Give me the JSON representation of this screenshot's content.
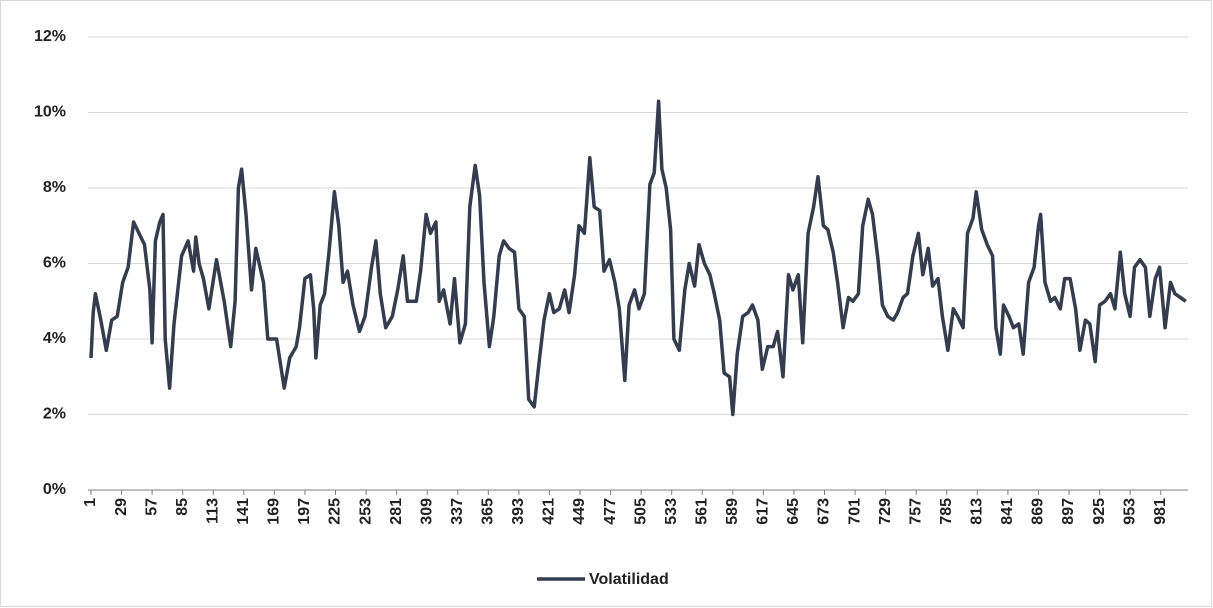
{
  "chart_data": {
    "type": "line",
    "xlim": [
      1,
      1006
    ],
    "xticks": [
      1,
      29,
      57,
      85,
      113,
      141,
      169,
      197,
      225,
      253,
      281,
      309,
      337,
      365,
      393,
      421,
      449,
      477,
      505,
      533,
      561,
      589,
      617,
      645,
      673,
      701,
      729,
      757,
      785,
      813,
      841,
      869,
      897,
      925,
      953,
      981
    ],
    "ylim": [
      0,
      12
    ],
    "yticks": [
      {
        "value": 0,
        "label": "0%"
      },
      {
        "value": 2,
        "label": "2%"
      },
      {
        "value": 4,
        "label": "4%"
      },
      {
        "value": 6,
        "label": "6%"
      },
      {
        "value": 8,
        "label": "8%"
      },
      {
        "value": 10,
        "label": "10%"
      },
      {
        "value": 12,
        "label": "12%"
      }
    ],
    "grid": true,
    "legend": "bottom",
    "series": [
      {
        "name": "Volatilidad",
        "color": "#333d4f",
        "x": [
          1,
          3,
          5,
          10,
          15,
          20,
          25,
          30,
          35,
          40,
          45,
          50,
          55,
          57,
          60,
          64,
          67,
          69,
          73,
          77,
          84,
          90,
          95,
          97,
          100,
          104,
          109,
          116,
          123,
          129,
          133,
          136,
          139,
          143,
          148,
          152,
          159,
          163,
          171,
          178,
          183,
          189,
          192,
          197,
          202,
          205,
          207,
          211,
          215,
          219,
          224,
          228,
          232,
          236,
          241,
          247,
          252,
          258,
          262,
          266,
          271,
          277,
          282,
          287,
          291,
          299,
          303,
          308,
          312,
          317,
          320,
          324,
          330,
          334,
          339,
          344,
          348,
          353,
          357,
          361,
          366,
          370,
          375,
          379,
          384,
          389,
          393,
          398,
          402,
          407,
          412,
          416,
          421,
          425,
          430,
          435,
          439,
          444,
          448,
          453,
          458,
          462,
          467,
          471,
          476,
          481,
          485,
          490,
          494,
          499,
          503,
          508,
          513,
          517,
          521,
          524,
          528,
          532,
          535,
          540,
          545,
          549,
          554,
          558,
          563,
          568,
          572,
          577,
          581,
          586,
          589,
          593,
          598,
          603,
          607,
          612,
          616,
          621,
          626,
          630,
          635,
          640,
          644,
          649,
          653,
          658,
          663,
          667,
          672,
          676,
          681,
          685,
          690,
          695,
          699,
          704,
          708,
          713,
          717,
          722,
          726,
          731,
          736,
          740,
          745,
          749,
          754,
          759,
          763,
          768,
          772,
          777,
          781,
          786,
          791,
          795,
          800,
          804,
          809,
          812,
          817,
          822,
          827,
          830,
          834,
          837,
          842,
          846,
          851,
          855,
          860,
          865,
          869,
          871,
          875,
          880,
          884,
          889,
          893,
          898,
          903,
          907,
          912,
          916,
          921,
          925,
          930,
          935,
          939,
          944,
          948,
          953,
          957,
          962,
          967,
          971,
          976,
          980,
          985,
          990,
          994,
          999,
          1004
        ],
        "values": [
          3.5,
          4.7,
          5.2,
          4.5,
          3.7,
          4.5,
          4.6,
          5.5,
          5.9,
          7.1,
          6.8,
          6.5,
          5.3,
          3.9,
          6.6,
          7.1,
          7.3,
          4.0,
          2.7,
          4.4,
          6.2,
          6.6,
          5.8,
          6.7,
          6.0,
          5.6,
          4.8,
          6.1,
          5.0,
          3.8,
          5.0,
          8.0,
          8.5,
          7.3,
          5.3,
          6.4,
          5.5,
          4.0,
          4.0,
          2.7,
          3.5,
          3.8,
          4.3,
          5.6,
          5.7,
          4.8,
          3.5,
          4.9,
          5.2,
          6.3,
          7.9,
          7.0,
          5.5,
          5.8,
          4.9,
          4.2,
          4.6,
          5.9,
          6.6,
          5.2,
          4.3,
          4.6,
          5.3,
          6.2,
          5.0,
          5.0,
          5.8,
          7.3,
          6.8,
          7.1,
          5.0,
          5.3,
          4.4,
          5.6,
          3.9,
          4.4,
          7.5,
          8.6,
          7.8,
          5.5,
          3.8,
          4.6,
          6.2,
          6.6,
          6.4,
          6.3,
          4.8,
          4.6,
          2.4,
          2.2,
          3.5,
          4.5,
          5.2,
          4.7,
          4.8,
          5.3,
          4.7,
          5.7,
          7.0,
          6.8,
          8.8,
          7.5,
          7.4,
          5.8,
          6.1,
          5.5,
          4.8,
          2.9,
          4.9,
          5.3,
          4.8,
          5.2,
          8.1,
          8.4,
          10.3,
          8.5,
          8.0,
          6.9,
          4.0,
          3.7,
          5.3,
          6.0,
          5.4,
          6.5,
          6.0,
          5.7,
          5.2,
          4.5,
          3.1,
          3.0,
          2.0,
          3.6,
          4.6,
          4.7,
          4.9,
          4.5,
          3.2,
          3.8,
          3.8,
          4.2,
          3.0,
          5.7,
          5.3,
          5.7,
          3.9,
          6.8,
          7.5,
          8.3,
          7.0,
          6.9,
          6.3,
          5.5,
          4.3,
          5.1,
          5.0,
          5.2,
          7.0,
          7.7,
          7.3,
          6.1,
          4.9,
          4.6,
          4.5,
          4.7,
          5.1,
          5.2,
          6.2,
          6.8,
          5.7,
          6.4,
          5.4,
          5.6,
          4.6,
          3.7,
          4.8,
          4.6,
          4.3,
          6.8,
          7.2,
          7.9,
          6.9,
          6.5,
          6.2,
          4.3,
          3.6,
          4.9,
          4.6,
          4.3,
          4.4,
          3.6,
          5.5,
          5.9,
          7.0,
          7.3,
          5.5,
          5.0,
          5.1,
          4.8,
          5.6,
          5.6,
          4.8,
          3.7,
          4.5,
          4.4,
          3.4,
          4.9,
          5.0,
          5.2,
          4.8,
          6.3,
          5.2,
          4.6,
          5.9,
          6.1,
          5.9,
          4.6,
          5.6,
          5.9,
          4.3,
          5.5,
          5.2,
          5.1,
          5.0
        ]
      }
    ]
  }
}
